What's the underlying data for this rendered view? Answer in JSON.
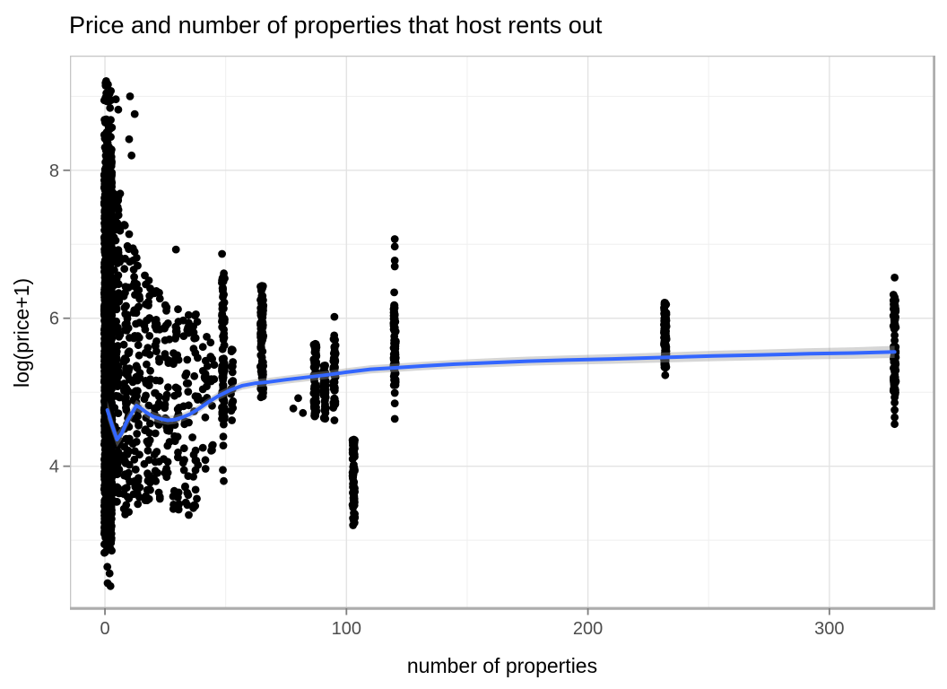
{
  "title": "Price and number of properties that host rents out",
  "chart_data": {
    "type": "scatter",
    "title": "Price and number of properties that host rents out",
    "xlabel": "number of properties",
    "ylabel": "log(price+1)",
    "x_ticks": [
      0,
      100,
      200,
      300
    ],
    "x_minor_ticks": [
      50,
      150,
      250
    ],
    "y_ticks": [
      4,
      6,
      8
    ],
    "y_minor_ticks": [
      3,
      5,
      7,
      9
    ],
    "xlim": [
      -14.5,
      343.5
    ],
    "ylim": [
      2.08,
      9.55
    ],
    "legend": "none",
    "grid": "on",
    "panel_background": "#ffffff",
    "point_color": "#000000",
    "point_radius_px": 4.4,
    "smooth_line_color": "#3366FF",
    "ribbon_color": "rgba(153,153,153,0.4)",
    "grid_major_color": "#e3e3e3",
    "grid_minor_color": "#efefef",
    "tick_label_color": "#4d4d4d",
    "axis_title_color": "#000000",
    "smooth_line": [
      [
        1,
        4.76
      ],
      [
        3,
        4.55
      ],
      [
        5,
        4.36
      ],
      [
        7,
        4.45
      ],
      [
        9,
        4.6
      ],
      [
        11,
        4.71
      ],
      [
        13,
        4.82
      ],
      [
        15,
        4.78
      ],
      [
        17,
        4.73
      ],
      [
        20,
        4.67
      ],
      [
        23,
        4.64
      ],
      [
        26,
        4.62
      ],
      [
        29,
        4.63
      ],
      [
        32,
        4.66
      ],
      [
        35,
        4.7
      ],
      [
        39,
        4.78
      ],
      [
        43,
        4.87
      ],
      [
        47,
        4.95
      ],
      [
        52,
        5.03
      ],
      [
        57,
        5.09
      ],
      [
        62,
        5.12
      ],
      [
        68,
        5.14
      ],
      [
        75,
        5.17
      ],
      [
        83,
        5.2
      ],
      [
        91,
        5.23
      ],
      [
        100,
        5.27
      ],
      [
        110,
        5.31
      ],
      [
        120,
        5.33
      ],
      [
        132,
        5.355
      ],
      [
        145,
        5.38
      ],
      [
        160,
        5.4
      ],
      [
        175,
        5.42
      ],
      [
        192,
        5.435
      ],
      [
        210,
        5.45
      ],
      [
        232,
        5.47
      ],
      [
        252,
        5.49
      ],
      [
        272,
        5.505
      ],
      [
        292,
        5.52
      ],
      [
        310,
        5.53
      ],
      [
        327,
        5.545
      ]
    ],
    "smooth_ci_halfwidth": [
      0.12,
      0.11,
      0.1,
      0.09,
      0.085,
      0.08,
      0.075,
      0.07,
      0.068,
      0.065,
      0.062,
      0.06,
      0.058,
      0.057,
      0.056,
      0.055,
      0.055,
      0.055,
      0.055,
      0.055,
      0.055,
      0.055,
      0.055,
      0.055,
      0.055,
      0.055,
      0.055,
      0.056,
      0.057,
      0.058,
      0.06,
      0.061,
      0.063,
      0.065,
      0.067,
      0.07,
      0.072,
      0.075,
      0.078,
      0.082
    ],
    "scatter_clusters": [
      {
        "x": 1.3,
        "spread": 1.6,
        "segments": [
          [
            8.65,
            9.28,
            20
          ],
          [
            8.0,
            8.65,
            55
          ],
          [
            6.5,
            8.0,
            420
          ],
          [
            5.0,
            6.5,
            560
          ],
          [
            3.6,
            5.0,
            520
          ],
          [
            3.0,
            3.6,
            160
          ],
          [
            2.8,
            3.05,
            10
          ]
        ],
        "points": [
          [
            1,
            2.64
          ],
          [
            1.9,
            2.55
          ],
          [
            1.1,
            2.42
          ],
          [
            2.3,
            2.38
          ]
        ]
      },
      {
        "x": 5,
        "spread": 1.3,
        "segments": [
          [
            3.2,
            7.7,
            120
          ]
        ],
        "points": [
          [
            5.5,
            8.82
          ],
          [
            4.5,
            8.96
          ]
        ]
      },
      {
        "x": 9,
        "spread": 1.3,
        "segments": [
          [
            3.3,
            7.3,
            85
          ]
        ],
        "points": [
          [
            10.4,
            9.0
          ],
          [
            10,
            8.42
          ],
          [
            11,
            8.2
          ]
        ]
      },
      {
        "x": 13,
        "spread": 1.5,
        "segments": [
          [
            3.4,
            7.0,
            70
          ]
        ],
        "points": [
          [
            12.3,
            8.76
          ]
        ]
      },
      {
        "x": 17.5,
        "spread": 1.3,
        "segments": [
          [
            3.5,
            6.65,
            52
          ]
        ],
        "points": []
      },
      {
        "x": 21.5,
        "spread": 1.3,
        "segments": [
          [
            3.5,
            6.4,
            44
          ]
        ],
        "points": []
      },
      {
        "x": 25.5,
        "spread": 1.3,
        "segments": [
          [
            3.6,
            6.25,
            38
          ]
        ],
        "points": []
      },
      {
        "x": 29.5,
        "spread": 1.3,
        "segments": [
          [
            3.4,
            6.2,
            38
          ]
        ],
        "points": [
          [
            29.4,
            6.93
          ]
        ]
      },
      {
        "x": 33.5,
        "spread": 1.3,
        "segments": [
          [
            3.3,
            6.05,
            32
          ]
        ],
        "points": []
      },
      {
        "x": 37.5,
        "spread": 1.3,
        "segments": [
          [
            3.4,
            6.3,
            28
          ]
        ],
        "points": []
      },
      {
        "x": 41.5,
        "spread": 1.0,
        "segments": [
          [
            3.8,
            5.85,
            18
          ]
        ],
        "points": []
      },
      {
        "x": 44.5,
        "spread": 0.8,
        "segments": [
          [
            4.2,
            5.7,
            12
          ]
        ],
        "points": []
      },
      {
        "x": 49,
        "spread": 0.6,
        "segments": [
          [
            4.55,
            6.62,
            85
          ]
        ],
        "points": [
          [
            48.5,
            6.87
          ],
          [
            49,
            4.4
          ],
          [
            49,
            4.28
          ],
          [
            48.8,
            3.95
          ],
          [
            49.2,
            3.8
          ]
        ]
      },
      {
        "x": 52.5,
        "spread": 0.5,
        "segments": [
          [
            4.6,
            5.6,
            22
          ]
        ],
        "points": []
      },
      {
        "x": 65,
        "spread": 0.6,
        "segments": [
          [
            4.93,
            6.45,
            105
          ]
        ],
        "points": []
      },
      {
        "x": 80,
        "spread": 1.5,
        "segments": [],
        "points": [
          [
            78,
            4.78
          ],
          [
            80,
            4.92
          ],
          [
            82,
            4.72
          ]
        ]
      },
      {
        "x": 87,
        "spread": 0.6,
        "segments": [
          [
            4.67,
            5.72,
            75
          ]
        ],
        "points": []
      },
      {
        "x": 91,
        "spread": 0.5,
        "segments": [
          [
            4.64,
            5.37,
            50
          ]
        ],
        "points": []
      },
      {
        "x": 95,
        "spread": 0.5,
        "segments": [
          [
            4.79,
            5.79,
            55
          ]
        ],
        "points": [
          [
            95,
            6.02
          ],
          [
            95,
            4.62
          ]
        ]
      },
      {
        "x": 103,
        "spread": 0.5,
        "segments": [
          [
            3.19,
            4.38,
            80
          ]
        ],
        "points": []
      },
      {
        "x": 120,
        "spread": 0.5,
        "segments": [
          [
            5.09,
            6.18,
            80
          ]
        ],
        "points": [
          [
            120,
            7.07
          ],
          [
            120,
            6.97
          ],
          [
            120,
            6.78
          ],
          [
            120,
            6.7
          ],
          [
            119.8,
            6.35
          ],
          [
            120,
            4.99
          ],
          [
            120,
            4.85
          ],
          [
            120,
            4.64
          ]
        ]
      },
      {
        "x": 232,
        "spread": 0.5,
        "segments": [
          [
            5.33,
            6.22,
            105
          ]
        ],
        "points": [
          [
            232,
            5.23
          ]
        ]
      },
      {
        "x": 327,
        "spread": 0.5,
        "segments": [
          [
            5.85,
            6.32,
            50
          ],
          [
            4.97,
            5.62,
            70
          ]
        ],
        "points": [
          [
            327,
            6.55
          ],
          [
            327,
            5.77
          ],
          [
            327,
            5.7
          ],
          [
            327,
            4.93
          ],
          [
            327,
            4.86
          ],
          [
            327,
            4.76
          ],
          [
            327,
            4.66
          ],
          [
            327,
            4.57
          ]
        ]
      }
    ]
  }
}
